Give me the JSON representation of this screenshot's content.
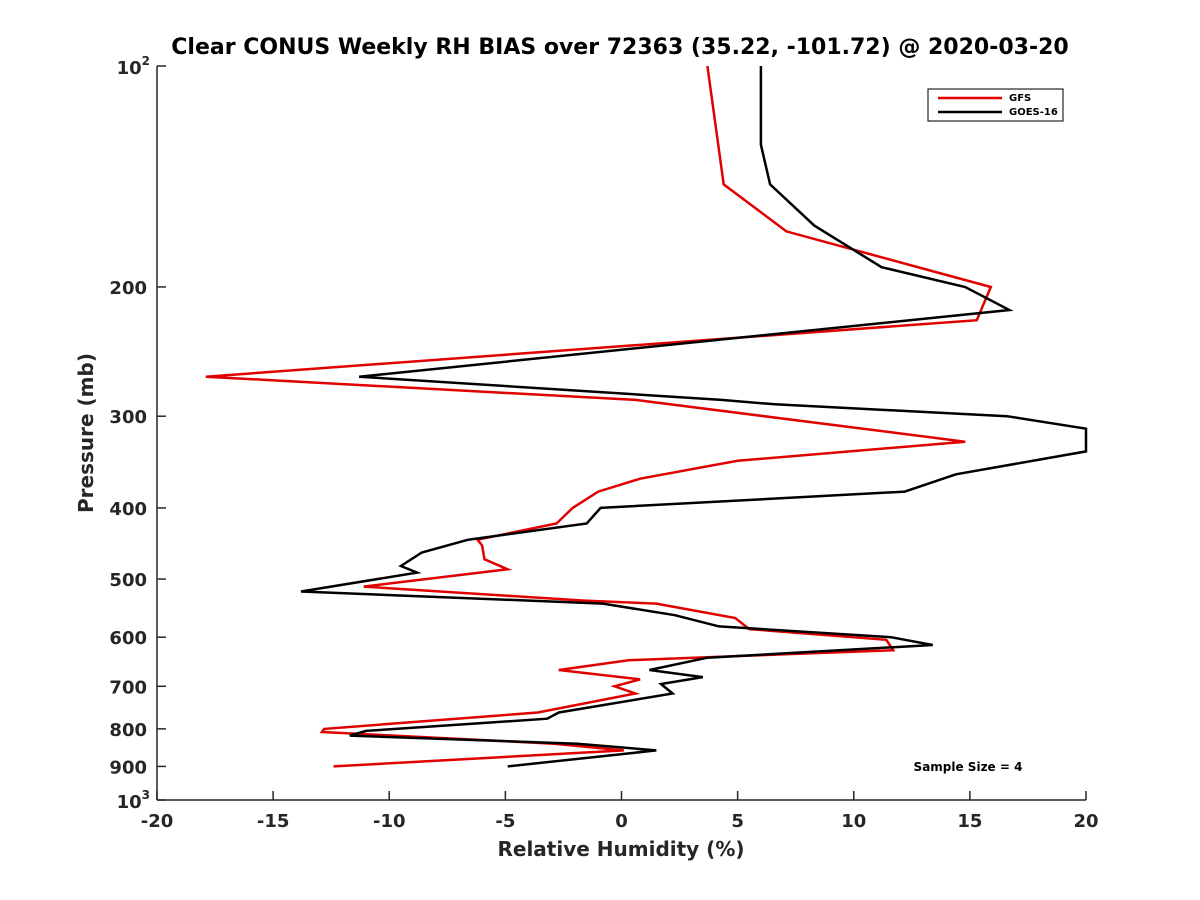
{
  "chart_data": {
    "type": "line",
    "title": "Clear CONUS Weekly RH BIAS over 72363 (35.22, -101.72) @ 2020-03-20",
    "xlabel": "Relative Humidity (%)",
    "ylabel": "Pressure (mb)",
    "xlim": [
      -20,
      20
    ],
    "ylim": [
      100,
      1000
    ],
    "yscale": "log",
    "y_reversed": true,
    "x_ticks": [
      -20,
      -15,
      -10,
      -5,
      0,
      5,
      10,
      15,
      20
    ],
    "x_tick_labels": [
      "-20",
      "-15",
      "-10",
      "-5",
      "0",
      "5",
      "10",
      "15",
      "20"
    ],
    "y_ticks": [
      200,
      300,
      400,
      500,
      600,
      700,
      800,
      900
    ],
    "y_tick_labels": [
      "200",
      "300",
      "400",
      "500",
      "600",
      "700",
      "800",
      "900"
    ],
    "y_end_labels": {
      "top": {
        "base": "10",
        "exp": "2"
      },
      "bottom": {
        "base": "10",
        "exp": "3"
      }
    },
    "grid": false,
    "legend_position": "top-right",
    "annotation": "Sample Size = 4",
    "series": [
      {
        "name": "GFS",
        "color": "#e00000",
        "x": [
          3.7,
          4.4,
          7.1,
          15.9,
          15.3,
          -17.9,
          0.6,
          14.8,
          5.0,
          0.8,
          -1.0,
          -2.1,
          -2.8,
          -6.2,
          -6.0,
          -5.9,
          -4.9,
          -11.1,
          -1.6,
          1.5,
          4.9,
          5.5,
          11.4,
          11.7,
          0.3,
          -2.7,
          0.8,
          -0.3,
          0.6,
          -3.6,
          -12.8,
          -12.9,
          -2.9,
          0.1,
          -12.4
        ],
        "pressure": [
          100,
          145,
          168,
          200,
          222,
          265,
          285,
          325,
          345,
          365,
          380,
          400,
          420,
          442,
          450,
          470,
          485,
          512,
          535,
          540,
          565,
          585,
          605,
          625,
          645,
          665,
          685,
          700,
          716,
          760,
          800,
          808,
          838,
          856,
          900
        ]
      },
      {
        "name": "GOES-16",
        "color": "#000000",
        "x": [
          6.0,
          6.0,
          6.4,
          8.3,
          11.2,
          14.8,
          16.7,
          -11.3,
          4.3,
          6.6,
          16.6,
          20.0,
          20.0,
          14.4,
          12.2,
          -0.9,
          -1.5,
          -6.6,
          -8.6,
          -9.5,
          -8.8,
          -13.8,
          -0.8,
          2.3,
          4.2,
          11.6,
          13.4,
          3.7,
          1.2,
          3.5,
          1.7,
          2.2,
          -2.7,
          -3.2,
          -11.0,
          -11.7,
          -1.9,
          1.5,
          -4.9
        ],
        "pressure": [
          100,
          128,
          145,
          165,
          188,
          200,
          215,
          265,
          285,
          289,
          300,
          312,
          335,
          360,
          380,
          400,
          420,
          442,
          460,
          480,
          490,
          520,
          540,
          560,
          580,
          600,
          615,
          640,
          665,
          680,
          695,
          716,
          760,
          775,
          805,
          817,
          838,
          856,
          900
        ]
      }
    ]
  }
}
